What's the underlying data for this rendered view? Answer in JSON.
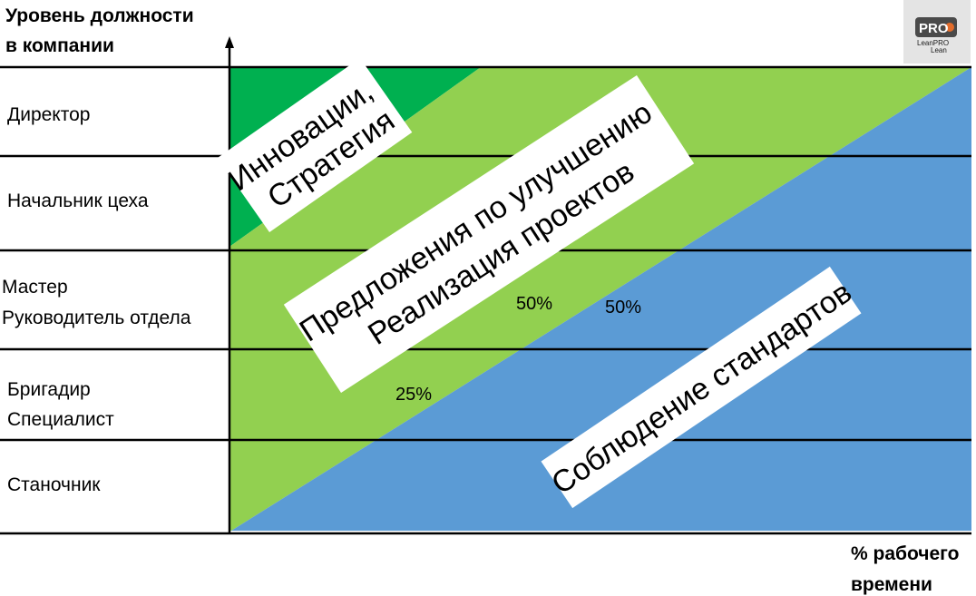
{
  "y_axis_title": [
    "Уровень должности",
    "в компании"
  ],
  "x_axis_title": [
    "% рабочего",
    "времени"
  ],
  "levels": [
    {
      "lines": [
        "Директор"
      ]
    },
    {
      "lines": [
        "Начальник цеха"
      ]
    },
    {
      "lines": [
        "Мастер",
        "Руководитель отдела"
      ]
    },
    {
      "lines": [
        "Бригадир",
        "Специалист"
      ]
    },
    {
      "lines": [
        "Станочник"
      ]
    }
  ],
  "bands": {
    "innovation": {
      "lines": [
        "Инновации,",
        "Стратегия"
      ]
    },
    "improvement": {
      "lines": [
        "Предложения по улучшению",
        "Реализация проектов"
      ]
    },
    "standards": {
      "lines": [
        "Соблюдение стандартов"
      ]
    }
  },
  "percent_labels": {
    "improvement_25": "25%",
    "improvement_50": "50%",
    "standards_50": "50%"
  },
  "logo": {
    "main": "PRO",
    "sub": "LeanPRO",
    "tag": "Lean"
  },
  "colors": {
    "innovation": "#00b050",
    "improvement": "#92d050",
    "standards": "#5b9bd5",
    "grid": "#000000",
    "label_box": "#ffffff"
  }
}
